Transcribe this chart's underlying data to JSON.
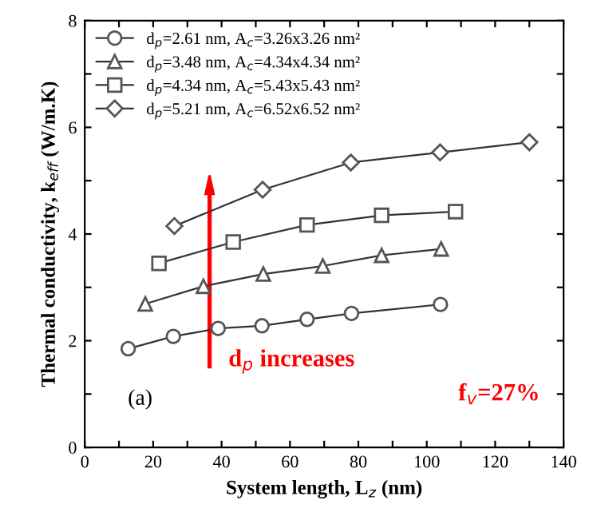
{
  "chart_data": {
    "type": "line",
    "xlabel": "System length, L$_{z}$ (nm)",
    "ylabel": "Thermal conductivity, k$_{eff}$ (W/m.K)",
    "series": [
      {
        "name": "d$_{p}$=2.61 nm, A$_{c}$=3.26x3.26 nm²",
        "color": "#333333",
        "marker": "circle",
        "x": [
          12.7,
          25.9,
          39,
          51.8,
          65,
          78,
          104
        ],
        "values": [
          1.85,
          2.08,
          2.23,
          2.28,
          2.4,
          2.51,
          2.68
        ]
      },
      {
        "name": "d$_{p}$=3.48 nm, A$_{c}$=4.34x4.34 nm²",
        "color": "#333333",
        "marker": "triangle",
        "x": [
          17.7,
          34.7,
          52.2,
          69.6,
          86.8,
          104.2
        ],
        "values": [
          2.69,
          3.02,
          3.25,
          3.4,
          3.6,
          3.72
        ]
      },
      {
        "name": "d$_{p}$=4.34 nm, A$_{c}$=5.43x5.43 nm²",
        "color": "#333333",
        "marker": "square",
        "x": [
          21.7,
          43.4,
          65,
          86.8,
          108.4
        ],
        "values": [
          3.45,
          3.85,
          4.17,
          4.35,
          4.42
        ]
      },
      {
        "name": "d$_{p}$=5.21 nm, A$_{c}$=6.52x6.52 nm²",
        "color": "#333333",
        "marker": "diamond",
        "x": [
          26.2,
          52,
          77.8,
          103.9,
          130
        ],
        "values": [
          4.15,
          4.83,
          5.34,
          5.53,
          5.72
        ]
      }
    ],
    "xlim": [
      0,
      140
    ],
    "xticks": [
      0,
      {
        "value": 10,
        "label": null
      },
      20,
      {
        "value": 30,
        "label": null
      },
      40,
      {
        "value": 50,
        "label": null
      },
      60,
      {
        "value": 70,
        "label": null
      },
      80,
      {
        "value": 90,
        "label": null
      },
      100,
      {
        "value": 110,
        "label": null
      },
      120,
      {
        "value": 130,
        "label": null
      },
      140
    ],
    "ylim": [
      0,
      8
    ],
    "yticks": [
      0,
      {
        "value": 1,
        "label": null
      },
      2,
      {
        "value": 3,
        "label": null
      },
      4,
      {
        "value": 5,
        "label": null
      },
      6,
      {
        "value": 7,
        "label": null
      },
      8
    ],
    "annotations": [
      "d$_{p}$ increases",
      "f$_{v}$=27%",
      "(a)"
    ],
    "legend": "top left",
    "line_style": "solid",
    "grid": false
  }
}
